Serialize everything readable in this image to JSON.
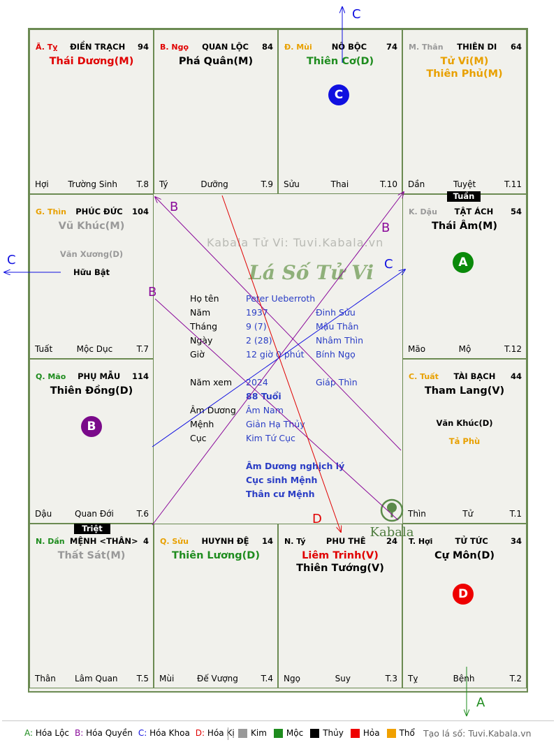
{
  "watermark": "Kabala Tử Vi: Tuvi.Kabala.vn",
  "title": "Lá Số Tử Vi",
  "brand": "Kabala",
  "palaces": [
    {
      "branch": "Ã. Tỵ",
      "branch_color": "#e00000",
      "name": "ĐIỀN TRẠCH",
      "num": "94",
      "stars": [
        {
          "t": "Thái Dương(M)",
          "c": "#e00000"
        }
      ],
      "minor": [],
      "foot": [
        "Hợi",
        "Trường Sinh",
        "T.8"
      ]
    },
    {
      "branch": "B. Ngọ",
      "branch_color": "#e00000",
      "name": "QUAN LỘC",
      "num": "84",
      "stars": [
        {
          "t": "Phá Quân(M)",
          "c": "#000000"
        }
      ],
      "minor": [],
      "foot": [
        "Tý",
        "Dưỡng",
        "T.9"
      ]
    },
    {
      "branch": "Đ. Mùi",
      "branch_color": "#e8a000",
      "name": "NÔ BỘC",
      "num": "74",
      "stars": [
        {
          "t": "Thiên Cơ(D)",
          "c": "#1e8c1e"
        }
      ],
      "minor": [],
      "foot": [
        "Sửu",
        "Thai",
        "T.10"
      ]
    },
    {
      "branch": "M. Thân",
      "branch_color": "#999999",
      "name": "THIÊN DI",
      "num": "64",
      "stars": [
        {
          "t": "Tử Vi(M)",
          "c": "#e8a000"
        },
        {
          "t": "Thiên Phủ(M)",
          "c": "#e8a000"
        }
      ],
      "minor": [],
      "foot": [
        "Dần",
        "Tuyệt",
        "T.11"
      ]
    },
    {
      "branch": "K. Dậu",
      "branch_color": "#999999",
      "name": "TẬT ÁCH",
      "num": "54",
      "stars": [
        {
          "t": "Thái Âm(M)",
          "c": "#000000"
        }
      ],
      "minor": [],
      "foot": [
        "Mão",
        "Mộ",
        "T.12"
      ]
    },
    {
      "branch": "C. Tuất",
      "branch_color": "#e8a000",
      "name": "TÀI BẠCH",
      "num": "44",
      "stars": [
        {
          "t": "Tham Lang(V)",
          "c": "#000000"
        }
      ],
      "minor": [
        {
          "t": "Văn Khúc(D)",
          "c": "#000000"
        },
        {
          "t": "Tả Phù",
          "c": "#e8a000"
        }
      ],
      "foot": [
        "Thìn",
        "Tử",
        "T.1"
      ]
    },
    {
      "branch": "T. Hợi",
      "branch_color": "#000000",
      "name": "TỬ TỨC",
      "num": "34",
      "stars": [
        {
          "t": "Cự Môn(D)",
          "c": "#000000"
        }
      ],
      "minor": [],
      "foot": [
        "Tỵ",
        "Bệnh",
        "T.2"
      ]
    },
    {
      "branch": "N. Tý",
      "branch_color": "#000000",
      "name": "PHU THÊ",
      "num": "24",
      "stars": [
        {
          "t": "Liêm Trinh(V)",
          "c": "#e00000"
        },
        {
          "t": "Thiên Tướng(V)",
          "c": "#000000"
        }
      ],
      "minor": [],
      "foot": [
        "Ngọ",
        "Suy",
        "T.3"
      ]
    },
    {
      "branch": "Q. Sửu",
      "branch_color": "#e8a000",
      "name": "HUYNH ĐỆ",
      "num": "14",
      "stars": [
        {
          "t": "Thiên Lương(D)",
          "c": "#1e8c1e"
        }
      ],
      "minor": [],
      "foot": [
        "Mùi",
        "Đế Vượng",
        "T.4"
      ]
    },
    {
      "branch": "N. Dần",
      "branch_color": "#1e8c1e",
      "name": "MỆNH <THÂN>",
      "num": "4",
      "stars": [
        {
          "t": "Thất Sát(M)",
          "c": "#999999"
        }
      ],
      "minor": [],
      "foot": [
        "Thân",
        "Lâm Quan",
        "T.5"
      ]
    },
    {
      "branch": "Q. Mão",
      "branch_color": "#1e8c1e",
      "name": "PHỤ MẪU",
      "num": "114",
      "stars": [
        {
          "t": "Thiên Đồng(D)",
          "c": "#000000"
        }
      ],
      "minor": [],
      "foot": [
        "Dậu",
        "Quan Đới",
        "T.6"
      ]
    },
    {
      "branch": "G. Thìn",
      "branch_color": "#e8a000",
      "name": "PHÚC ĐỨC",
      "num": "104",
      "stars": [
        {
          "t": "Vũ Khúc(M)",
          "c": "#999999"
        }
      ],
      "minor": [
        {
          "t": "Văn Xương(D)",
          "c": "#999999"
        },
        {
          "t": "Hữu Bật",
          "c": "#000000"
        }
      ],
      "foot": [
        "Tuất",
        "Mộc Dục",
        "T.7"
      ]
    }
  ],
  "info": [
    {
      "label": "Họ tên",
      "v1": "Peter Ueberroth",
      "v2": ""
    },
    {
      "label": "Năm",
      "v1": "1937",
      "v2": "Đinh Sửu"
    },
    {
      "label": "Tháng",
      "v1": "9  (7)",
      "v2": "Mậu Thân"
    },
    {
      "label": "Ngày",
      "v1": "2  (28)",
      "v2": "Nhâm Thìn"
    },
    {
      "label": "Giờ",
      "v1": "12 giờ 0 phút",
      "v2": "Bính Ngọ"
    },
    {
      "label": "Năm xem",
      "v1": "2024",
      "v2": "Giáp Thìn"
    },
    {
      "label": "",
      "v1": "88 Tuổi",
      "v2": ""
    },
    {
      "label": "Âm Dương",
      "v1": "Âm Nam",
      "v2": ""
    },
    {
      "label": "Mệnh",
      "v1": "Giản Hạ Thủy",
      "v2": ""
    },
    {
      "label": "Cục",
      "v1": "Kim Tứ Cục",
      "v2": ""
    }
  ],
  "notes": [
    "Âm Dương nghịch lý",
    "Cục sinh Mệnh",
    "Thân cư Mệnh"
  ],
  "tags": {
    "tuan": "Tuần",
    "triet": "Triệt"
  },
  "badges": [
    {
      "letter": "C",
      "color": "#1010e0"
    },
    {
      "letter": "A",
      "color": "#0a8a0a"
    },
    {
      "letter": "B",
      "color": "#7a0a8a"
    },
    {
      "letter": "D",
      "color": "#ee0000"
    }
  ],
  "arrow_labels": [
    "C",
    "C",
    "A",
    "B",
    "B",
    "C",
    "B",
    "D"
  ],
  "legend": {
    "transforms": [
      {
        "key": "A:",
        "text": "Hóa Lộc",
        "color": "#1e8c1e"
      },
      {
        "key": "B:",
        "text": "Hóa Quyền",
        "color": "#8a0a9a"
      },
      {
        "key": "C:",
        "text": "Hóa Khoa",
        "color": "#1010e0"
      },
      {
        "key": "D:",
        "text": "Hóa Kị",
        "color": "#e00000"
      }
    ],
    "elements": [
      {
        "name": "Kim",
        "color": "#999999"
      },
      {
        "name": "Mộc",
        "color": "#1e8c1e"
      },
      {
        "name": "Thủy",
        "color": "#000000"
      },
      {
        "name": "Hỏa",
        "color": "#ee0000"
      },
      {
        "name": "Thổ",
        "color": "#f0a000"
      }
    ],
    "site": "Tạo lá số: Tuvi.Kabala.vn"
  }
}
